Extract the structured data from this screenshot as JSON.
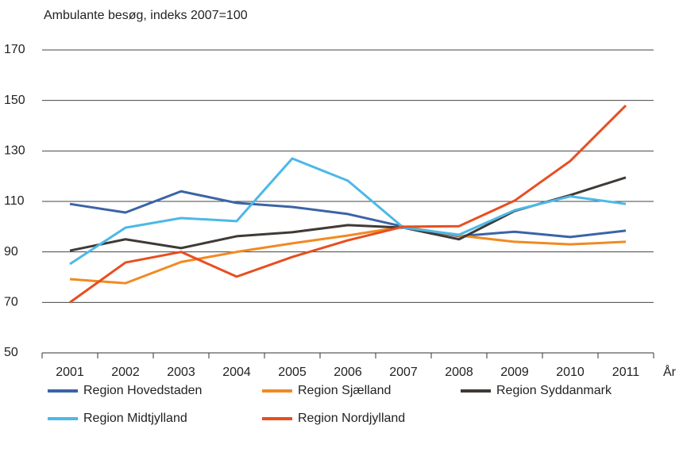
{
  "chart_data": {
    "type": "line",
    "ylabel": "Ambulante besøg, indeks 2007=100",
    "xlabel": "År",
    "categories": [
      "2001",
      "2002",
      "2003",
      "2004",
      "2005",
      "2006",
      "2007",
      "2008",
      "2009",
      "2010",
      "2011"
    ],
    "ylim": [
      50,
      170
    ],
    "yticks": [
      50,
      70,
      90,
      110,
      130,
      150,
      170
    ],
    "grid": true,
    "series": [
      {
        "name": "Region Hovedstaden",
        "color": "#3b64a6",
        "values": [
          109,
          105.6,
          114,
          109.4,
          107.8,
          105,
          100,
          96.2,
          98,
          95.9,
          98.4
        ]
      },
      {
        "name": "Region Sjælland",
        "color": "#f18a21",
        "values": [
          79.2,
          77.6,
          86,
          90,
          93.4,
          96.5,
          100,
          96.5,
          94,
          93,
          94
        ]
      },
      {
        "name": "Region Syddanmark",
        "color": "#3f3a36",
        "values": [
          90.5,
          95,
          91.5,
          96.2,
          97.8,
          100.6,
          99.6,
          95,
          106.2,
          112.5,
          119.5
        ]
      },
      {
        "name": "Region Midtjylland",
        "color": "#4cb8e8",
        "values": [
          85.2,
          99.6,
          103.4,
          102.2,
          127,
          118.2,
          99.6,
          96.8,
          106.5,
          112,
          109
        ]
      },
      {
        "name": "Region Nordjylland",
        "color": "#e84e1f",
        "values": [
          70,
          85.8,
          90,
          80.2,
          88,
          94.6,
          100,
          100.2,
          110.3,
          126,
          148
        ]
      }
    ]
  }
}
